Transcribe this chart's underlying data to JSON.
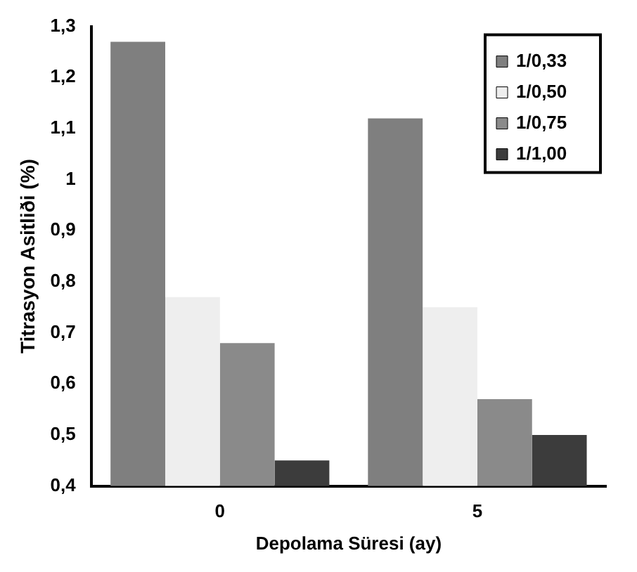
{
  "chart_data": {
    "type": "bar",
    "xlabel": "Depolama Süresi (ay)",
    "ylabel": "Titrasyon Asitliði (%)",
    "categories": [
      "0",
      "5"
    ],
    "series": [
      {
        "name": "1/0,33",
        "color": "#7f7f7f",
        "values": [
          1.27,
          1.12
        ]
      },
      {
        "name": "1/0,50",
        "color": "#eeeeee",
        "values": [
          0.77,
          0.75
        ]
      },
      {
        "name": "1/0,75",
        "color": "#8a8a8a",
        "values": [
          0.68,
          0.57
        ]
      },
      {
        "name": "1/1,00",
        "color": "#3c3c3c",
        "values": [
          0.45,
          0.5
        ]
      }
    ],
    "ylim": [
      0.4,
      1.3
    ],
    "yticks": [
      {
        "value": 0.4,
        "label": "0,4"
      },
      {
        "value": 0.5,
        "label": "0,5"
      },
      {
        "value": 0.6,
        "label": "0,6"
      },
      {
        "value": 0.7,
        "label": "0,7"
      },
      {
        "value": 0.8,
        "label": "0,8"
      },
      {
        "value": 0.9,
        "label": "0,9"
      },
      {
        "value": 1,
        "label": "1"
      },
      {
        "value": 1.1,
        "label": "1,1"
      },
      {
        "value": 1.2,
        "label": "1,2"
      },
      {
        "value": 1.3,
        "label": "1,3"
      }
    ],
    "grid": false,
    "legend": "top right"
  }
}
